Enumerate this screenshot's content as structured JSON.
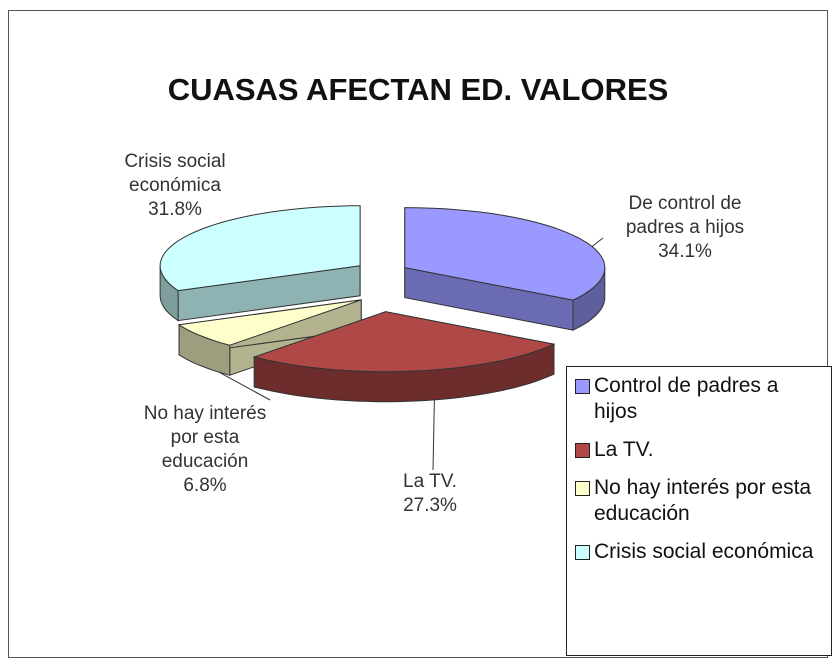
{
  "chart_data": {
    "type": "pie3d",
    "title": "CUASAS AFECTAN ED. VALORES",
    "categories": [
      "Control de padres a hijos",
      "La TV.",
      "No hay interés por esta educación",
      "Crisis social económica"
    ],
    "slice_labels": [
      "De control de padres a hijos",
      "La TV.",
      "No hay interés por esta educación",
      "Crisis social económica"
    ],
    "values": [
      34.1,
      27.3,
      6.8,
      31.8
    ],
    "value_labels": [
      "34.1%",
      "27.3%",
      "6.8%",
      "31.8%"
    ],
    "colors": [
      "#9999ff",
      "#b04848",
      "#ffffcc",
      "#ccffff"
    ],
    "legend": "right"
  }
}
